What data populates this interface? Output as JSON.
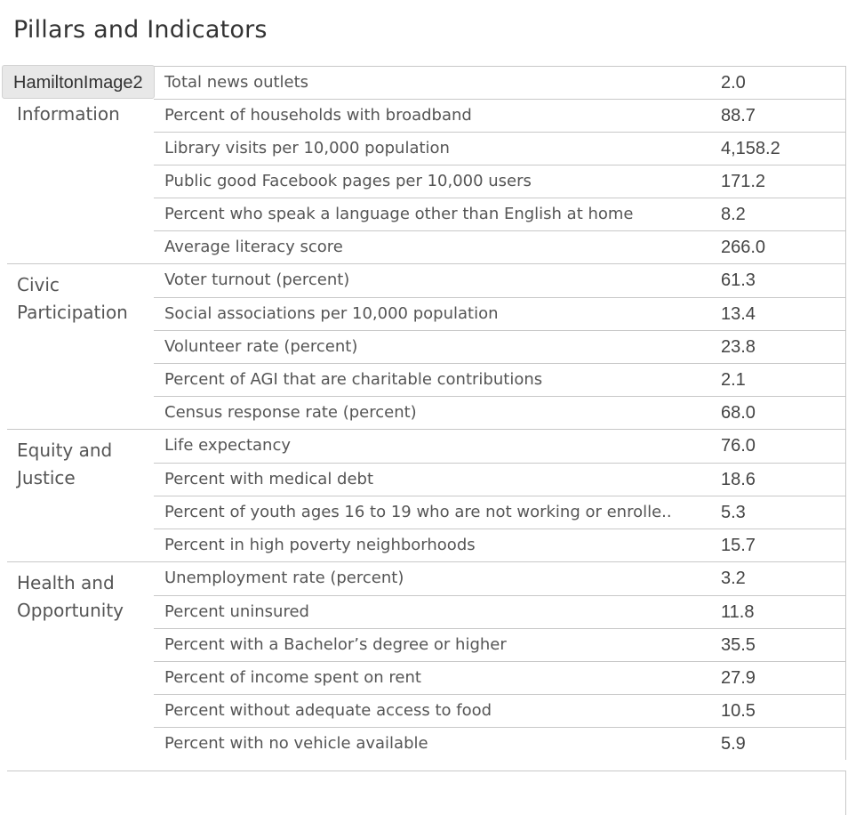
{
  "header": {
    "title": "Pillars and Indicators"
  },
  "tooltip": {
    "text": "HamiltonImage2"
  },
  "pillars": [
    {
      "name": "Access to\nInformation",
      "indicators": [
        {
          "label": "Total news outlets",
          "value": "2.0"
        },
        {
          "label": "Percent of households with broadband",
          "value": "88.7"
        },
        {
          "label": "Library visits per 10,000 population",
          "value": "4,158.2"
        },
        {
          "label": "Public good Facebook pages per 10,000 users",
          "value": "171.2"
        },
        {
          "label": "Percent who speak a language other than English at home",
          "value": "8.2"
        },
        {
          "label": "Average literacy score",
          "value": "266.0"
        }
      ]
    },
    {
      "name": "Civic\nParticipation",
      "indicators": [
        {
          "label": "Voter turnout (percent)",
          "value": "61.3"
        },
        {
          "label": "Social associations per 10,000 population",
          "value": "13.4"
        },
        {
          "label": "Volunteer rate (percent)",
          "value": "23.8"
        },
        {
          "label": "Percent of AGI that are charitable contributions",
          "value": "2.1"
        },
        {
          "label": "Census response rate (percent)",
          "value": "68.0"
        }
      ]
    },
    {
      "name": "Equity and\nJustice",
      "indicators": [
        {
          "label": "Life expectancy",
          "value": "76.0"
        },
        {
          "label": "Percent with medical debt",
          "value": "18.6"
        },
        {
          "label": "Percent of youth ages 16 to 19 who are not working or enrolle..",
          "value": "5.3"
        },
        {
          "label": "Percent in high poverty neighborhoods",
          "value": "15.7"
        }
      ]
    },
    {
      "name": "Health and\nOpportunity",
      "indicators": [
        {
          "label": "Unemployment rate (percent)",
          "value": "3.2"
        },
        {
          "label": "Percent uninsured",
          "value": "11.8"
        },
        {
          "label": "Percent with a Bachelor’s degree or higher",
          "value": "35.5"
        },
        {
          "label": "Percent of income spent on rent",
          "value": "27.9"
        },
        {
          "label": "Percent without adequate access to food",
          "value": "10.5"
        },
        {
          "label": "Percent with no vehicle available",
          "value": "5.9"
        }
      ]
    }
  ]
}
